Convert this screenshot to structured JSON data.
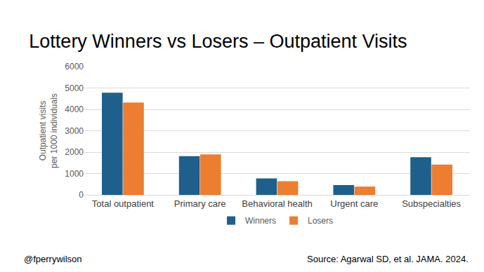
{
  "chart_data": {
    "type": "bar",
    "title": "Lottery Winners vs Losers – Outpatient Visits",
    "y_label": "Outpatient visits per 1000 individuals",
    "categories": [
      "Total outpatient",
      "Primary care",
      "Behavioral health",
      "Urgent care",
      "Subspecialties"
    ],
    "series": [
      {
        "name": "Winners",
        "color": "#1f5f8b",
        "values": [
          4780,
          1810,
          770,
          460,
          1760
        ]
      },
      {
        "name": "Losers",
        "color": "#ed7d31",
        "values": [
          4320,
          1890,
          640,
          390,
          1420
        ]
      }
    ],
    "ylim": [
      0,
      6000
    ],
    "yticks": [
      0,
      1000,
      2000,
      3000,
      4000,
      5000,
      6000
    ],
    "grid": true,
    "legend": "bottom",
    "annotations": [
      "@fperrywilson",
      "Source: Agarwal SD, et al. JAMA. 2024."
    ]
  }
}
